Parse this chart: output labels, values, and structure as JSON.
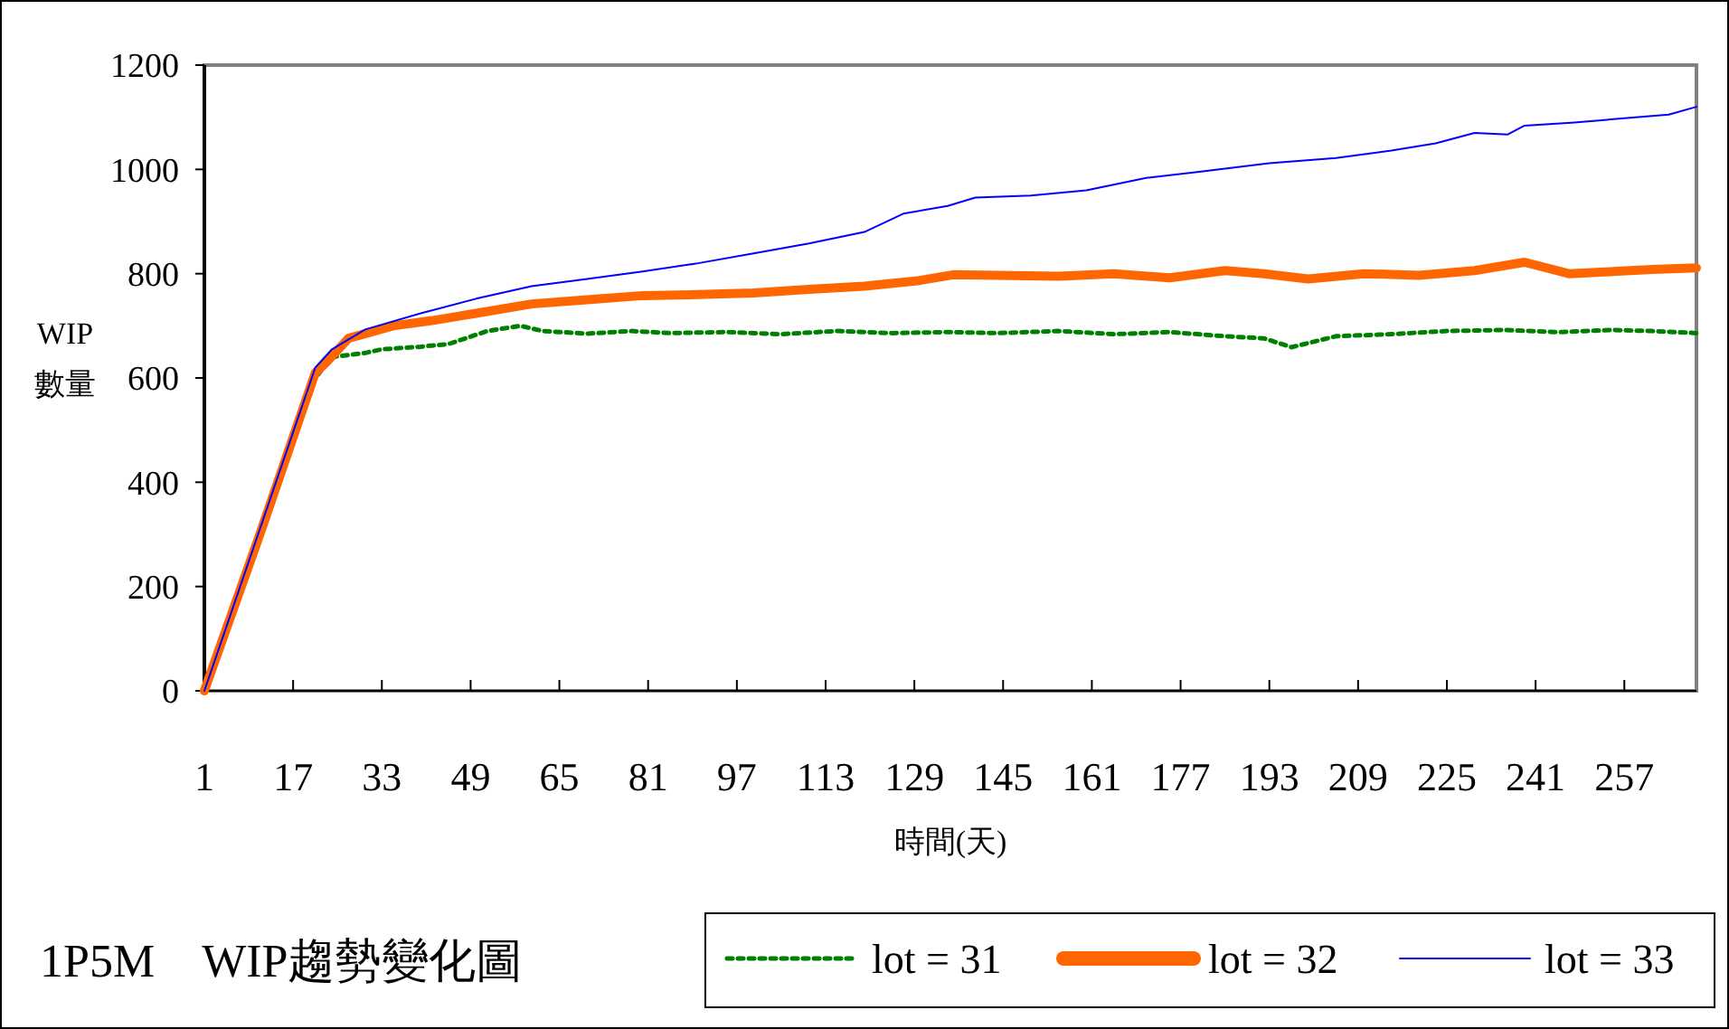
{
  "chart_data": {
    "type": "line",
    "title": "1P5M　WIP趨勢變化圖",
    "xlabel": "時間(天)",
    "ylabel": "WIP 數量",
    "xlim": [
      1,
      270
    ],
    "xticks": [
      1,
      17,
      33,
      49,
      65,
      81,
      97,
      113,
      129,
      145,
      161,
      177,
      193,
      209,
      225,
      241,
      257
    ],
    "ylim": [
      0,
      1200
    ],
    "yticks": [
      0,
      200,
      400,
      600,
      800,
      1000,
      1200
    ],
    "grid": false,
    "legend": "bottom right",
    "series": [
      {
        "name": "lot = 31",
        "color": "#008000",
        "line_style": "dotted",
        "x": [
          1,
          11,
          21,
          24,
          30,
          33,
          40,
          45,
          52,
          58,
          62,
          70,
          78,
          85,
          95,
          105,
          115,
          125,
          135,
          144,
          155,
          165,
          175,
          185,
          192,
          197,
          205,
          215,
          225,
          235,
          245,
          255,
          262,
          270
        ],
        "values": [
          0,
          null,
          600,
          640,
          648,
          655,
          660,
          665,
          690,
          700,
          690,
          685,
          690,
          686,
          688,
          684,
          690,
          686,
          688,
          686,
          690,
          684,
          688,
          680,
          676,
          659,
          680,
          684,
          690,
          692,
          688,
          692,
          690,
          686
        ]
      },
      {
        "name": "lot = 32",
        "color": "#ff6600",
        "line_style": "solid",
        "x": [
          1,
          11,
          21,
          23,
          27,
          35,
          42,
          50,
          60,
          70,
          80,
          90,
          100,
          110,
          120,
          130,
          136,
          144,
          155,
          165,
          175,
          185,
          192,
          200,
          210,
          220,
          230,
          239,
          247,
          255,
          262,
          270
        ],
        "values": [
          0,
          300,
          610,
          630,
          676,
          700,
          710,
          724,
          742,
          750,
          758,
          760,
          763,
          770,
          776,
          787,
          798,
          797,
          795,
          800,
          792,
          806,
          800,
          790,
          800,
          797,
          806,
          822,
          800,
          804,
          808,
          811
        ]
      },
      {
        "name": "lot = 33",
        "color": "#0000ff",
        "line_style": "solid",
        "x": [
          1,
          11,
          21,
          24,
          30,
          40,
          50,
          60,
          70,
          80,
          90,
          100,
          110,
          120,
          127,
          135,
          140,
          150,
          160,
          171,
          180,
          193,
          205,
          215,
          223,
          230,
          236,
          239,
          248,
          258,
          265,
          270
        ],
        "values": [
          0,
          310,
          620,
          655,
          693,
          724,
          752,
          776,
          790,
          804,
          820,
          839,
          858,
          880,
          915,
          930,
          946,
          950,
          960,
          984,
          995,
          1012,
          1022,
          1036,
          1050,
          1070,
          1067,
          1084,
          1090,
          1099,
          1105,
          1120
        ]
      }
    ]
  }
}
